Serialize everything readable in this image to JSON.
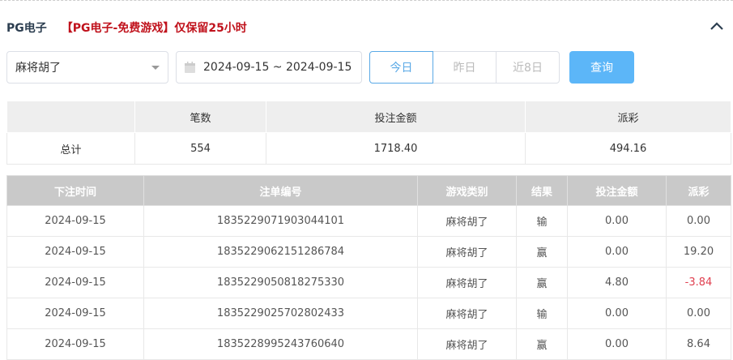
{
  "header": {
    "title": "PG电子",
    "notice": "【PG电子-免费游戏】仅保留25小时"
  },
  "filters": {
    "game": "麻将胡了",
    "date_range": "2024-09-15 ~ 2024-09-15",
    "ranges": [
      "今日",
      "昨日",
      "近8日"
    ],
    "active_range": "今日",
    "query_label": "查询"
  },
  "summary": {
    "headers": [
      "",
      "笔数",
      "投注金额",
      "派彩"
    ],
    "row": [
      "总计",
      "554",
      "1718.40",
      "494.16"
    ]
  },
  "table": {
    "headers": [
      "下注时间",
      "注单编号",
      "游戏类别",
      "结果",
      "投注金额",
      "派彩"
    ],
    "rows": [
      [
        "2024-09-15",
        "1835229071903044101",
        "麻将胡了",
        "输",
        "0.00",
        "0.00"
      ],
      [
        "2024-09-15",
        "1835229062151286784",
        "麻将胡了",
        "赢",
        "0.00",
        "19.20"
      ],
      [
        "2024-09-15",
        "1835229050818275330",
        "麻将胡了",
        "赢",
        "4.80",
        "-3.84"
      ],
      [
        "2024-09-15",
        "1835229025702802433",
        "麻将胡了",
        "输",
        "0.00",
        "0.00"
      ],
      [
        "2024-09-15",
        "1835228995243760640",
        "麻将胡了",
        "赢",
        "0.00",
        "8.64"
      ]
    ]
  },
  "colors": {
    "accent": "#5cb6f8",
    "notice": "#c0121c",
    "negative": "#e04050"
  }
}
